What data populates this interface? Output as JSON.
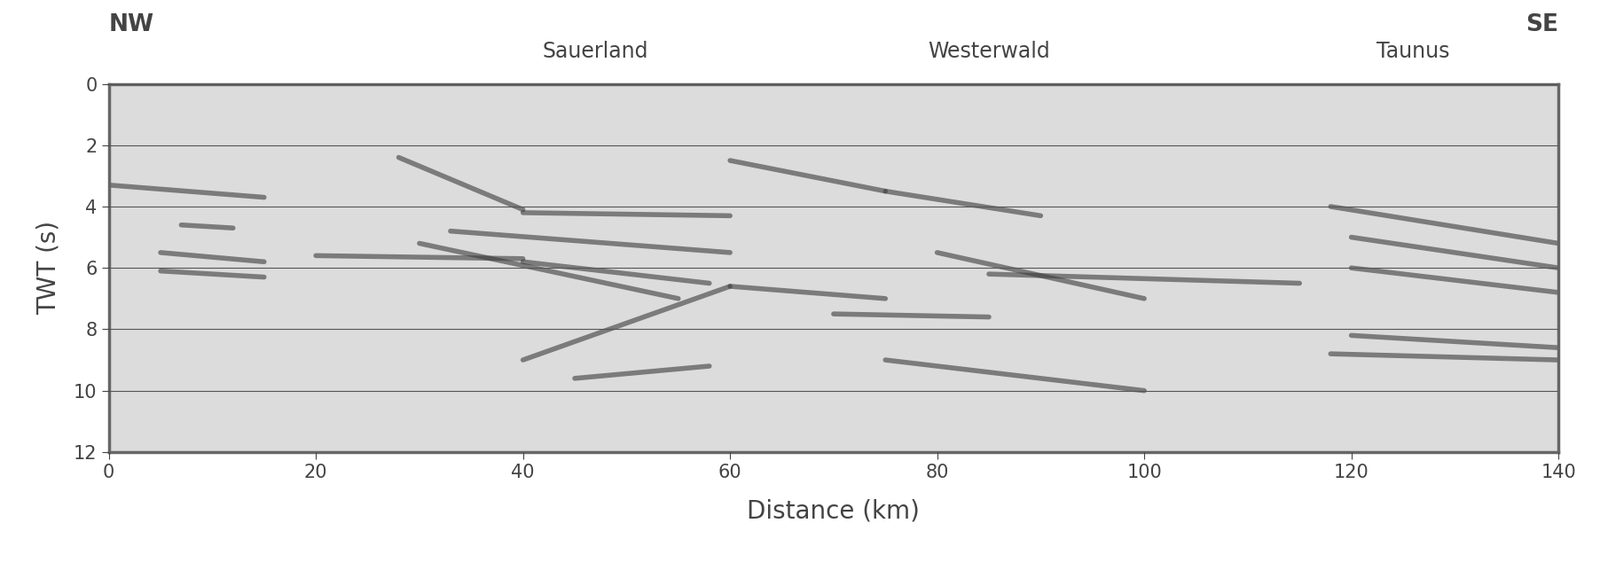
{
  "chart_data": {
    "type": "seismic_section",
    "xlabel": "Distance (km)",
    "ylabel": "TWT (s)",
    "xlim": [
      0,
      140
    ],
    "ylim": [
      12,
      0
    ],
    "xticks": [
      0,
      20,
      40,
      60,
      80,
      100,
      120,
      140
    ],
    "yticks": [
      0,
      2,
      4,
      6,
      8,
      10,
      12
    ],
    "grid": "y",
    "color": "#3a3a3a",
    "corner_labels": [
      "NW",
      "SE"
    ],
    "annotations": [
      {
        "text": "Sauerland",
        "x": 47
      },
      {
        "text": "Westerwald",
        "x": 85
      },
      {
        "text": "Taunus",
        "x": 126
      }
    ],
    "reflectors": [
      [
        [
          0,
          3.3
        ],
        [
          15,
          3.7
        ]
      ],
      [
        [
          7,
          4.6
        ],
        [
          12,
          4.7
        ]
      ],
      [
        [
          5,
          5.5
        ],
        [
          15,
          5.8
        ]
      ],
      [
        [
          5,
          6.1
        ],
        [
          15,
          6.3
        ]
      ],
      [
        [
          20,
          5.6
        ],
        [
          40,
          5.7
        ]
      ],
      [
        [
          28,
          2.4
        ],
        [
          40,
          4.1
        ]
      ],
      [
        [
          40,
          4.2
        ],
        [
          60,
          4.3
        ]
      ],
      [
        [
          33,
          4.8
        ],
        [
          60,
          5.5
        ]
      ],
      [
        [
          30,
          5.2
        ],
        [
          55,
          7.0
        ]
      ],
      [
        [
          40,
          5.8
        ],
        [
          58,
          6.5
        ]
      ],
      [
        [
          40,
          9.0
        ],
        [
          60,
          6.6
        ]
      ],
      [
        [
          60,
          6.6
        ],
        [
          75,
          7.0
        ]
      ],
      [
        [
          70,
          7.5
        ],
        [
          85,
          7.6
        ]
      ],
      [
        [
          45,
          9.6
        ],
        [
          58,
          9.2
        ]
      ],
      [
        [
          60,
          2.5
        ],
        [
          75,
          3.5
        ]
      ],
      [
        [
          75,
          3.5
        ],
        [
          90,
          4.3
        ]
      ],
      [
        [
          80,
          5.5
        ],
        [
          100,
          7.0
        ]
      ],
      [
        [
          85,
          6.2
        ],
        [
          115,
          6.5
        ]
      ],
      [
        [
          75,
          9.0
        ],
        [
          100,
          10.0
        ]
      ],
      [
        [
          118,
          4.0
        ],
        [
          140,
          5.2
        ]
      ],
      [
        [
          120,
          5.0
        ],
        [
          140,
          6.0
        ]
      ],
      [
        [
          120,
          6.0
        ],
        [
          140,
          6.8
        ]
      ],
      [
        [
          120,
          8.2
        ],
        [
          140,
          8.6
        ]
      ],
      [
        [
          118,
          8.8
        ],
        [
          140,
          9.0
        ]
      ]
    ]
  }
}
